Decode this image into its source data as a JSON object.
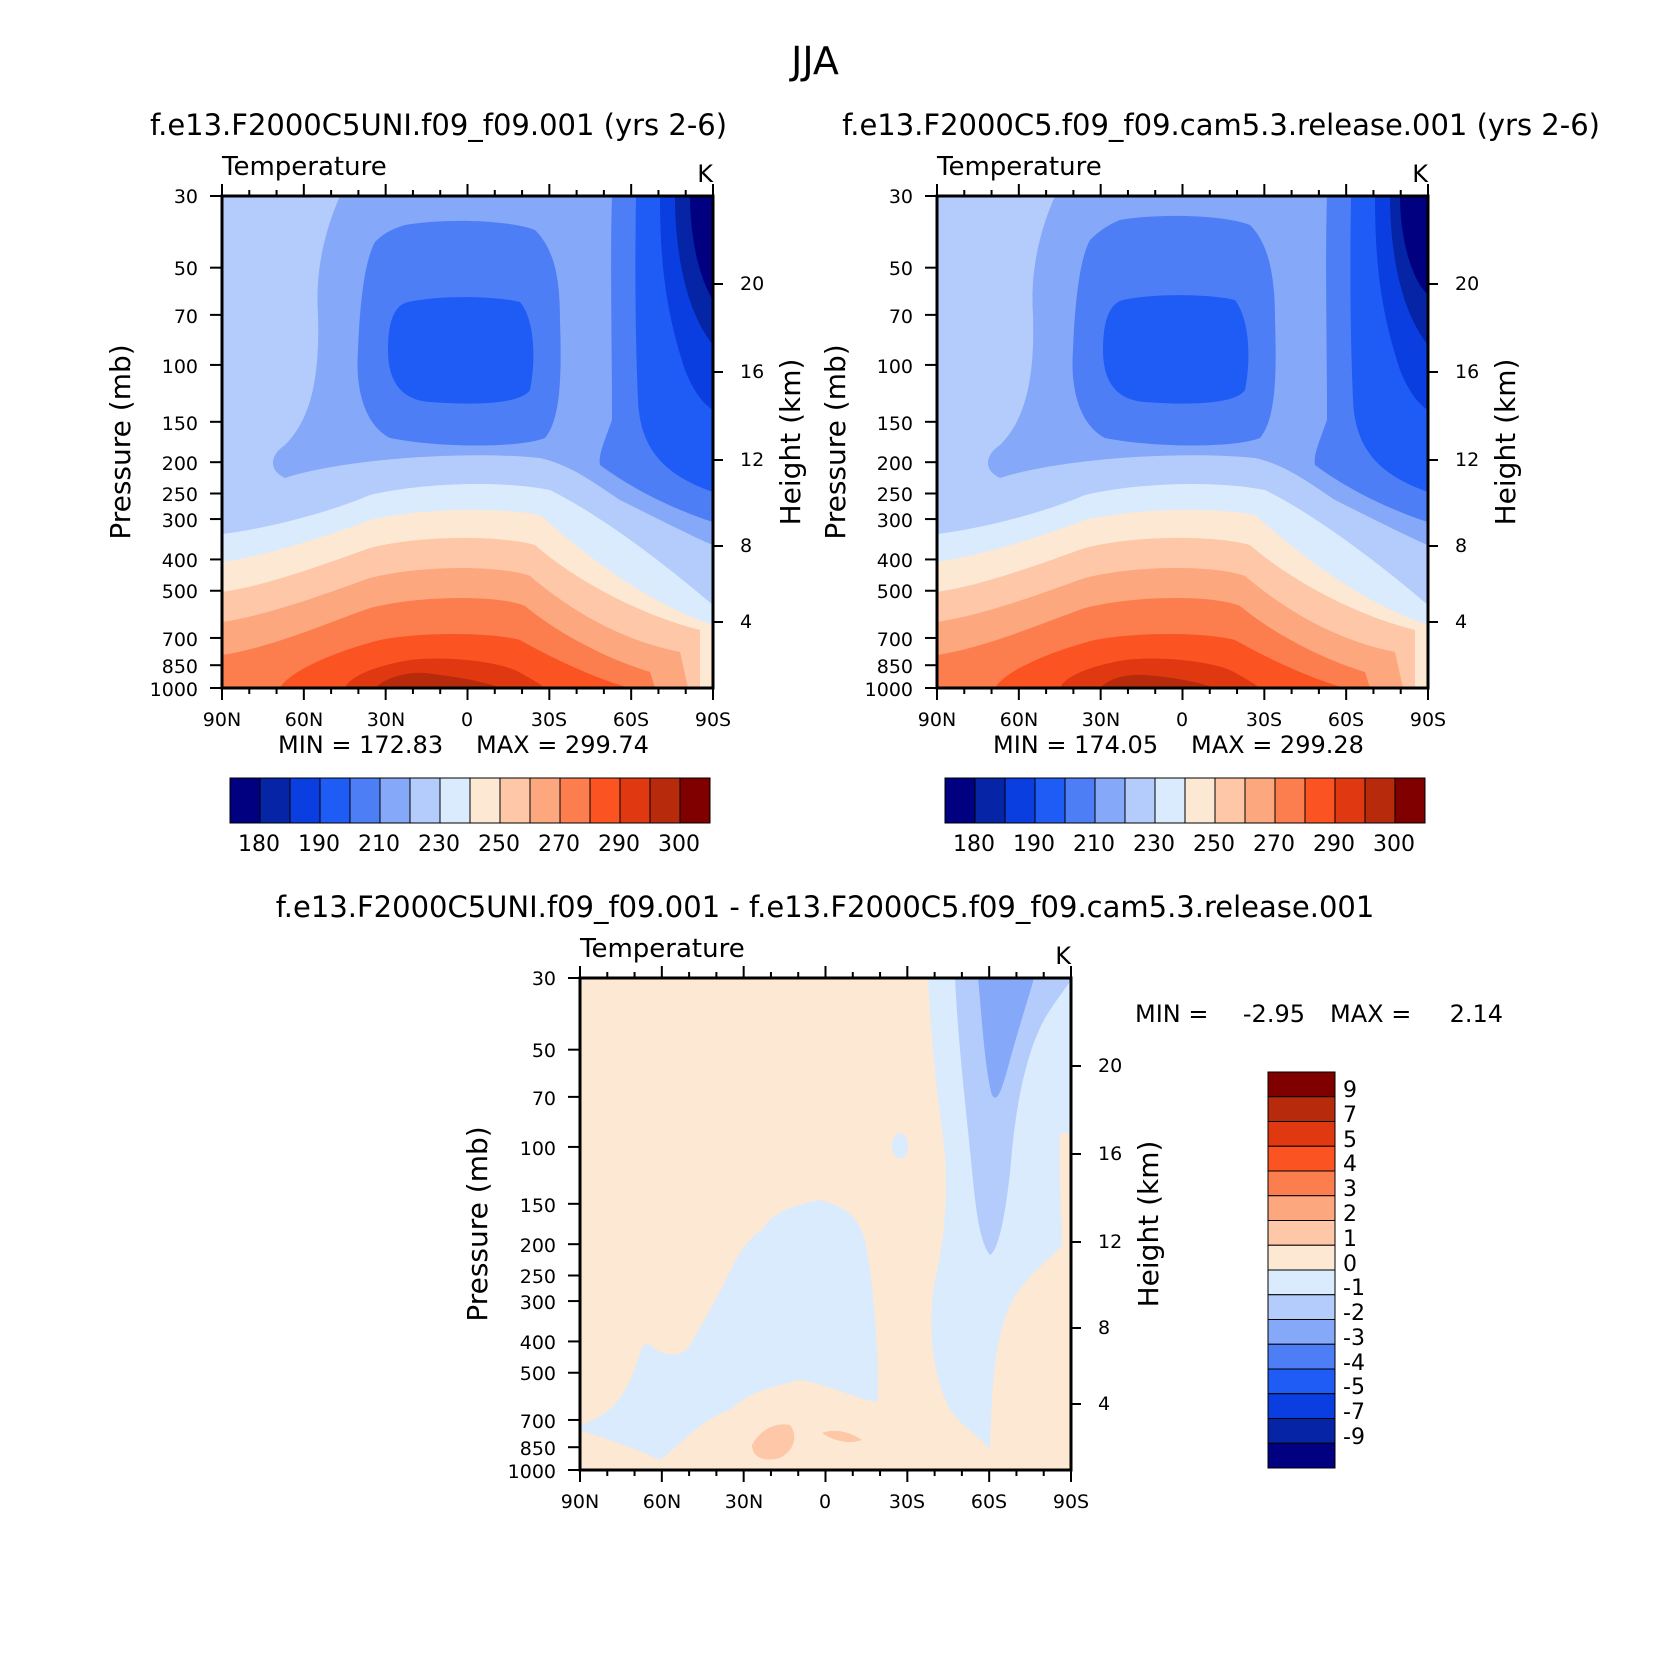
{
  "figure_title": "JJA",
  "colors": {
    "temperature_scale": [
      "#000080",
      "#0524a6",
      "#0a3ee0",
      "#1f5cf5",
      "#4d7ef5",
      "#85a8f8",
      "#b3ccfb",
      "#d9ebfd",
      "#fde8d4",
      "#fdc7a8",
      "#fca77d",
      "#fc7e4e",
      "#fb5422",
      "#e03810",
      "#b82a0c",
      "#800000"
    ],
    "difference_scale": [
      "#000080",
      "#0524a6",
      "#0a3ee0",
      "#1f5cf5",
      "#4d7ef5",
      "#85a8f8",
      "#b3ccfb",
      "#d9ebfd",
      "#fde8d4",
      "#fdc7a8",
      "#fca77d",
      "#fc7e4e",
      "#fb5422",
      "#e03810",
      "#b82a0c",
      "#800000"
    ]
  },
  "chart_data": [
    {
      "type": "heatmap",
      "title": "f.e13.F2000C5UNI.f09_f09.001 (yrs 2-6)",
      "panel_left_label": "Temperature",
      "panel_right_label": "K",
      "xlabel": "",
      "ylabel": "Pressure (mb)",
      "y2label": "Height (km)",
      "x_ticks": [
        "90N",
        "60N",
        "30N",
        "0",
        "30S",
        "60S",
        "90S"
      ],
      "y_ticks": [
        "30",
        "50",
        "70",
        "100",
        "150",
        "200",
        "250",
        "300",
        "400",
        "500",
        "700",
        "850",
        "1000"
      ],
      "y2_ticks": [
        "20",
        "16",
        "12",
        "8",
        "4"
      ],
      "min_label": "MIN = 172.83",
      "max_label": "MAX = 299.74",
      "min": 172.83,
      "max": 299.74,
      "colorbar_labels": [
        "180",
        "190",
        "210",
        "230",
        "250",
        "270",
        "290",
        "300"
      ]
    },
    {
      "type": "heatmap",
      "title": "f.e13.F2000C5.f09_f09.cam5.3.release.001 (yrs 2-6)",
      "panel_left_label": "Temperature",
      "panel_right_label": "K",
      "xlabel": "",
      "ylabel": "Pressure (mb)",
      "y2label": "Height (km)",
      "x_ticks": [
        "90N",
        "60N",
        "30N",
        "0",
        "30S",
        "60S",
        "90S"
      ],
      "y_ticks": [
        "30",
        "50",
        "70",
        "100",
        "150",
        "200",
        "250",
        "300",
        "400",
        "500",
        "700",
        "850",
        "1000"
      ],
      "y2_ticks": [
        "20",
        "16",
        "12",
        "8",
        "4"
      ],
      "min_label": "MIN = 174.05",
      "max_label": "MAX = 299.28",
      "min": 174.05,
      "max": 299.28,
      "colorbar_labels": [
        "180",
        "190",
        "210",
        "230",
        "250",
        "270",
        "290",
        "300"
      ]
    },
    {
      "type": "heatmap",
      "title": "f.e13.F2000C5UNI.f09_f09.001 - f.e13.F2000C5.f09_f09.cam5.3.release.001",
      "panel_left_label": "Temperature",
      "panel_right_label": "K",
      "xlabel": "",
      "ylabel": "Pressure (mb)",
      "y2label": "Height (km)",
      "x_ticks": [
        "90N",
        "60N",
        "30N",
        "0",
        "30S",
        "60S",
        "90S"
      ],
      "y_ticks": [
        "30",
        "50",
        "70",
        "100",
        "150",
        "200",
        "250",
        "300",
        "400",
        "500",
        "700",
        "850",
        "1000"
      ],
      "y2_ticks": [
        "20",
        "16",
        "12",
        "8",
        "4"
      ],
      "min_label": "MIN =",
      "min_value": "-2.95",
      "max_label": "MAX =",
      "max_value": "2.14",
      "min": -2.95,
      "max": 2.14,
      "colorbar_labels": [
        "9",
        "7",
        "5",
        "4",
        "3",
        "2",
        "1",
        "0",
        "-1",
        "-2",
        "-3",
        "-4",
        "-5",
        "-7",
        "-9"
      ]
    }
  ]
}
